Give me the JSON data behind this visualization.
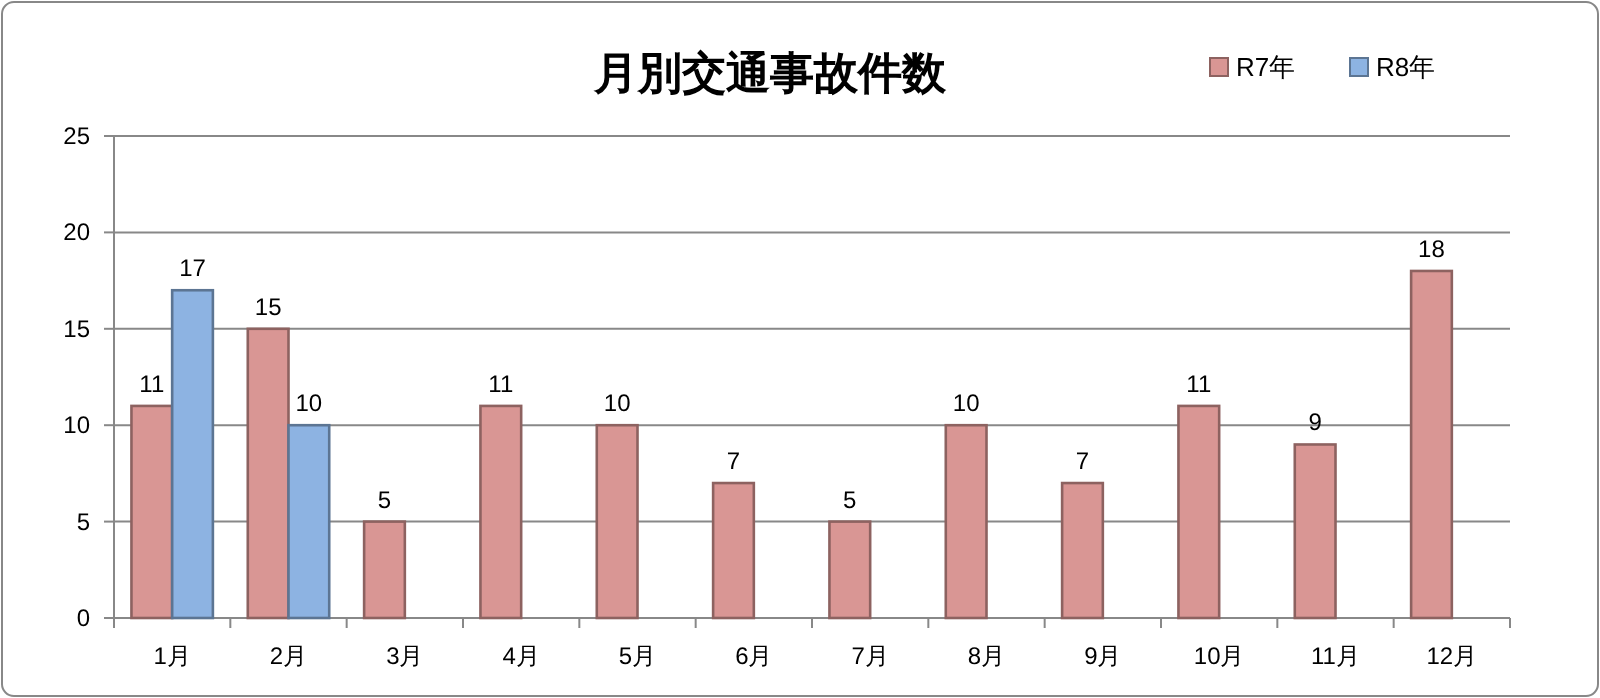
{
  "chart_data": {
    "type": "bar",
    "title": "月別交通事故件数",
    "categories": [
      "1月",
      "2月",
      "3月",
      "4月",
      "5月",
      "6月",
      "7月",
      "8月",
      "9月",
      "10月",
      "11月",
      "12月"
    ],
    "series": [
      {
        "name": "R7年",
        "color": "#d99694",
        "values": [
          11,
          15,
          5,
          11,
          10,
          7,
          5,
          10,
          7,
          11,
          9,
          18
        ]
      },
      {
        "name": "R8年",
        "color": "#8db3e2",
        "values": [
          17,
          10,
          null,
          null,
          null,
          null,
          null,
          null,
          null,
          null,
          null,
          null
        ]
      }
    ],
    "ylim": [
      0,
      25
    ],
    "yticks": [
      0,
      5,
      10,
      15,
      20,
      25
    ],
    "grid": "y",
    "legend": "top right",
    "data_labels": true
  }
}
